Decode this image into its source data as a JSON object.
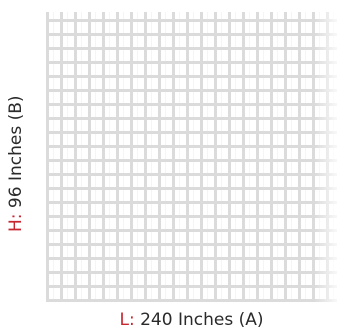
{
  "dimensions": {
    "length": {
      "prefix": "L:",
      "text": " 240 Inches (A)"
    },
    "height": {
      "prefix": "H:",
      "text": " 96 Inches (B)"
    }
  },
  "colors": {
    "prefix": "#c8262f",
    "text": "#2a2a2a",
    "mesh": "#d8d8d8"
  }
}
